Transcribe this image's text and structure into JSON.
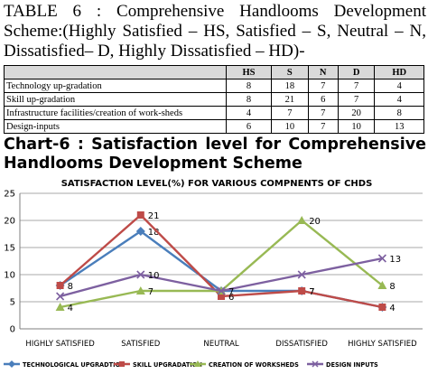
{
  "heading": {
    "line1": "TABLE 6 : Comprehensive Handlooms Development",
    "line2": "Scheme:(Highly Satisfied – HS, Satisfied – S, Neutral – N,",
    "line3": "Dissatisfied– D, Highly Dissatisfied – HD)-"
  },
  "table": {
    "headers": [
      "HS",
      "S",
      "N",
      "D",
      "HD"
    ],
    "rows": [
      {
        "label": "Technology up-gradation",
        "values": [
          "8",
          "18",
          "7",
          "7",
          "4"
        ]
      },
      {
        "label": "Skill up-gradation",
        "values": [
          "8",
          "21",
          "6",
          "7",
          "4"
        ]
      },
      {
        "label": "Infrastructure facilities/creation of work-sheds",
        "values": [
          "4",
          "7",
          "7",
          "20",
          "8"
        ]
      },
      {
        "label": "Design-inputs",
        "values": [
          "6",
          "10",
          "7",
          "10",
          "13"
        ]
      }
    ]
  },
  "chart_heading": {
    "line1": "Chart-6 : Satisfaction level for Comprehensive",
    "line2": "Handlooms Development Scheme"
  },
  "chart_data": {
    "type": "line",
    "title": "SATISFACTION LEVEL(%) FOR VARIOUS COMPNENTS OF CHDS",
    "categories": [
      "HIGHLY SATISFIED",
      "SATISFIED",
      "NEUTRAL",
      "DISSATISFIED",
      "HIGHLY SATISFIED"
    ],
    "ylim": [
      0,
      25
    ],
    "yticks": [
      0,
      5,
      10,
      15,
      20,
      25
    ],
    "grid": true,
    "legend": "bottom",
    "series": [
      {
        "name": "TECHNOLOGICAL UPGRADTION",
        "color": "#4a7ebb",
        "values": [
          8,
          18,
          7,
          7,
          4
        ],
        "labels": [
          "",
          "18",
          "",
          "7",
          ""
        ]
      },
      {
        "name": "SKILL UPGRADATION",
        "color": "#be4b48",
        "values": [
          8,
          21,
          6,
          7,
          4
        ],
        "labels": [
          "8",
          "21",
          "6",
          "7",
          "4"
        ]
      },
      {
        "name": "CREATION OF WORKSHEDS",
        "color": "#98b954",
        "values": [
          4,
          7,
          7,
          20,
          8
        ],
        "labels": [
          "4",
          "7",
          "",
          "20",
          "8"
        ]
      },
      {
        "name": "DESIGN INPUTS",
        "color": "#7d60a0",
        "values": [
          6,
          10,
          7,
          10,
          13
        ],
        "labels": [
          "",
          "10",
          "7",
          "",
          "13"
        ]
      }
    ]
  }
}
